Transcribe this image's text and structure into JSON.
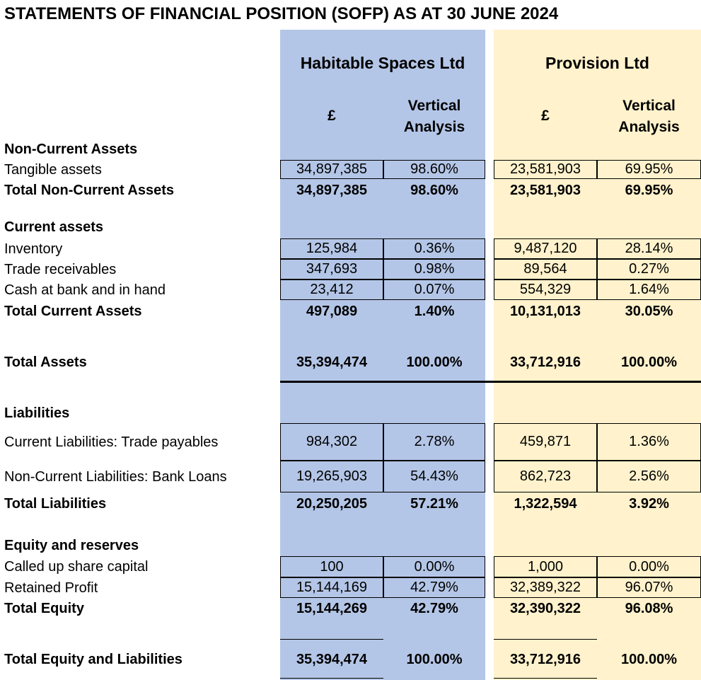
{
  "title": "STATEMENTS OF FINANCIAL POSITION (SOFP) AS AT 30 JUNE 2024",
  "companies": [
    {
      "name": "Habitable Spaces Ltd",
      "col_value": "£",
      "col_va": "Vertical Analysis"
    },
    {
      "name": "Provision Ltd",
      "col_value": "£",
      "col_va": "Vertical Analysis"
    }
  ],
  "rows": [
    {
      "label": "Non-Current Assets",
      "bold": true,
      "heading": true
    },
    {
      "label": "Tangible assets",
      "values": [
        "34,897,385",
        "98.60%",
        "23,581,903",
        "69.95%"
      ]
    },
    {
      "label": "Total Non-Current Assets",
      "bold": true,
      "values": [
        "34,897,385",
        "98.60%",
        "23,581,903",
        "69.95%"
      ]
    },
    {
      "label": "Current assets",
      "bold": true,
      "heading": true
    },
    {
      "label": "Inventory",
      "values": [
        "125,984",
        "0.36%",
        "9,487,120",
        "28.14%"
      ]
    },
    {
      "label": "Trade receivables",
      "values": [
        "347,693",
        "0.98%",
        "89,564",
        "0.27%"
      ]
    },
    {
      "label": "Cash at bank and in hand",
      "values": [
        "23,412",
        "0.07%",
        "554,329",
        "1.64%"
      ]
    },
    {
      "label": "Total Current Assets",
      "bold": true,
      "values": [
        "497,089",
        "1.40%",
        "10,131,013",
        "30.05%"
      ]
    },
    {
      "label": "Total Assets",
      "bold": true,
      "values": [
        "35,394,474",
        "100.00%",
        "33,712,916",
        "100.00%"
      ]
    },
    {
      "label": "Liabilities",
      "bold": true,
      "heading": true
    },
    {
      "label": "Current Liabilities: Trade payables",
      "values": [
        "984,302",
        "2.78%",
        "459,871",
        "1.36%"
      ]
    },
    {
      "label": "Non-Current Liabilities: Bank Loans",
      "values": [
        "19,265,903",
        "54.43%",
        "862,723",
        "2.56%"
      ]
    },
    {
      "label": "Total Liabilities",
      "bold": true,
      "values": [
        "20,250,205",
        "57.21%",
        "1,322,594",
        "3.92%"
      ]
    },
    {
      "label": "Equity and reserves",
      "bold": true,
      "heading": true
    },
    {
      "label": "Called up share capital",
      "values": [
        "100",
        "0.00%",
        "1,000",
        "0.00%"
      ]
    },
    {
      "label": "Retained Profit",
      "values": [
        "15,144,169",
        "42.79%",
        "32,389,322",
        "96.07%"
      ]
    },
    {
      "label": "Total Equity",
      "bold": true,
      "values": [
        "15,144,269",
        "42.79%",
        "32,390,322",
        "96.08%"
      ]
    },
    {
      "label": "Total Equity and Liabilities",
      "bold": true,
      "values": [
        "35,394,474",
        "100.00%",
        "33,712,916",
        "100.00%"
      ]
    }
  ]
}
